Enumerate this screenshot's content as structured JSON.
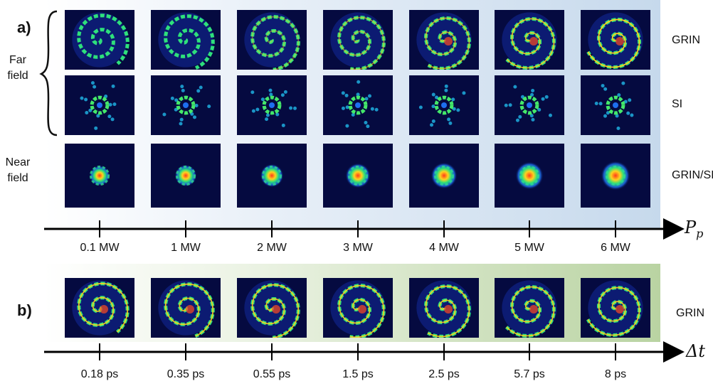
{
  "panel_a": {
    "label": "a)",
    "row_labels": {
      "far": [
        "Far",
        "field"
      ],
      "near": [
        "Near",
        "field"
      ]
    },
    "fiber_labels": [
      "GRIN",
      "SI",
      "GRIN/SI"
    ],
    "axis_variable": "P",
    "axis_variable_sub": "p",
    "ticks": [
      "0.1 MW",
      "1 MW",
      "2 MW",
      "3 MW",
      "4 MW",
      "5 MW",
      "6 MW"
    ]
  },
  "panel_b": {
    "label": "b)",
    "fiber_label": "GRIN",
    "axis_variable": "Δt",
    "ticks": [
      "0.18 ps",
      "0.35 ps",
      "0.55 ps",
      "1.5 ps",
      "2.5 ps",
      "5.7 ps",
      "8 ps"
    ]
  },
  "colors": {
    "image_background": "#050a40",
    "panel_a_gradient_end": "#c6d9ec",
    "panel_b_gradient_end": "#b9d3a2",
    "axis": "#000000"
  }
}
